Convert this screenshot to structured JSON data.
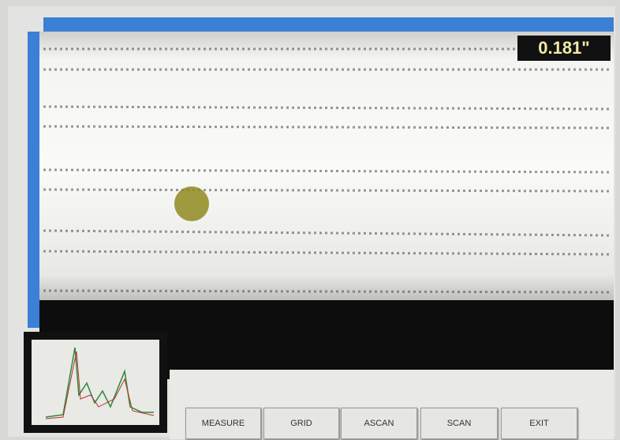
{
  "readout": "0.181\"",
  "buttons": [
    "MEASURE",
    "GRID",
    "ASCAN",
    "SCAN",
    "EXIT"
  ]
}
